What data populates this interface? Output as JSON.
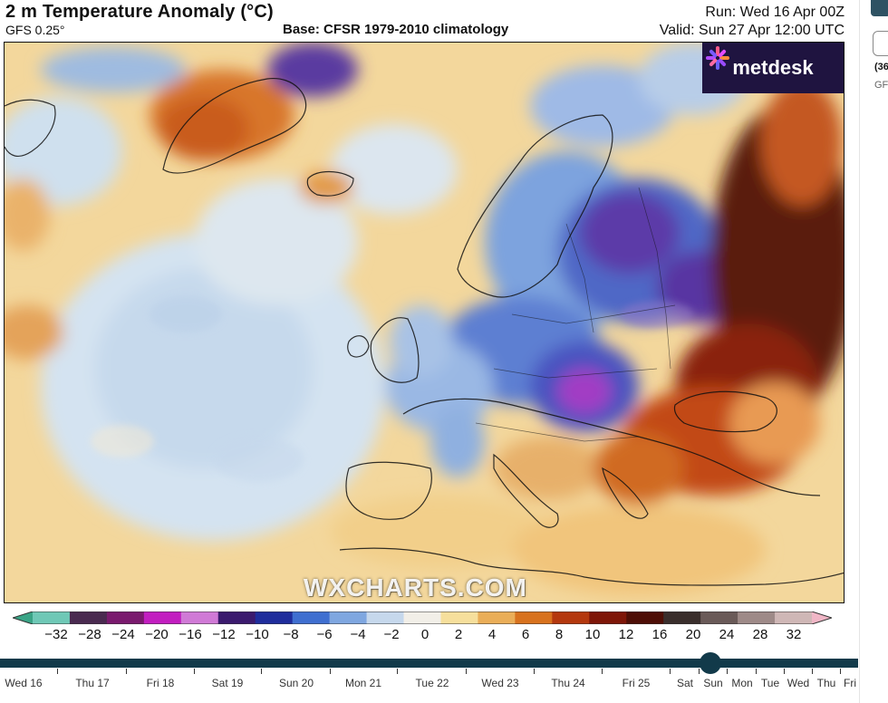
{
  "header": {
    "title": "2 m Temperature Anomaly (°C)",
    "model": "GFS 0.25°",
    "base": "Base: CFSR 1979-2010 climatology",
    "run": "Run: Wed 16 Apr 00Z",
    "valid": "Valid: Sun 27 Apr 12:00 UTC"
  },
  "logo": {
    "text": "metdesk"
  },
  "watermark": "WXCHARTS.COM",
  "scale": {
    "labels": [
      "−32",
      "−28",
      "−24",
      "−20",
      "−16",
      "−12",
      "−10",
      "−8",
      "−6",
      "−4",
      "−2",
      "0",
      "2",
      "4",
      "6",
      "8",
      "10",
      "12",
      "16",
      "20",
      "24",
      "28",
      "32"
    ],
    "colors": [
      "#3aa486",
      "#6fc8b6",
      "#4a2a50",
      "#7a1a6e",
      "#c21ec0",
      "#d07ad6",
      "#3b1a6e",
      "#1f2d9c",
      "#3f6fd0",
      "#7fa7e0",
      "#c6d8ec",
      "#f2efe8",
      "#f6df9c",
      "#eaae58",
      "#d8721e",
      "#b4380e",
      "#7e1608",
      "#4e0e06",
      "#3a2e2c",
      "#6a5a58",
      "#9e8a88",
      "#cfb7b6",
      "#f0b6c6"
    ]
  },
  "timeline": {
    "days": [
      "Wed 16",
      "Thu 17",
      "Fri 18",
      "Sat 19",
      "Sun 20",
      "Mon 21",
      "Tue 22",
      "Wed 23",
      "Thu 24",
      "Fri 25",
      "Sat",
      "Sun",
      "Mon",
      "Tue",
      "Wed",
      "Thu",
      "Fri"
    ],
    "selected": "Sun"
  },
  "side_panel": {
    "line1": "(36",
    "line2": "GF"
  }
}
